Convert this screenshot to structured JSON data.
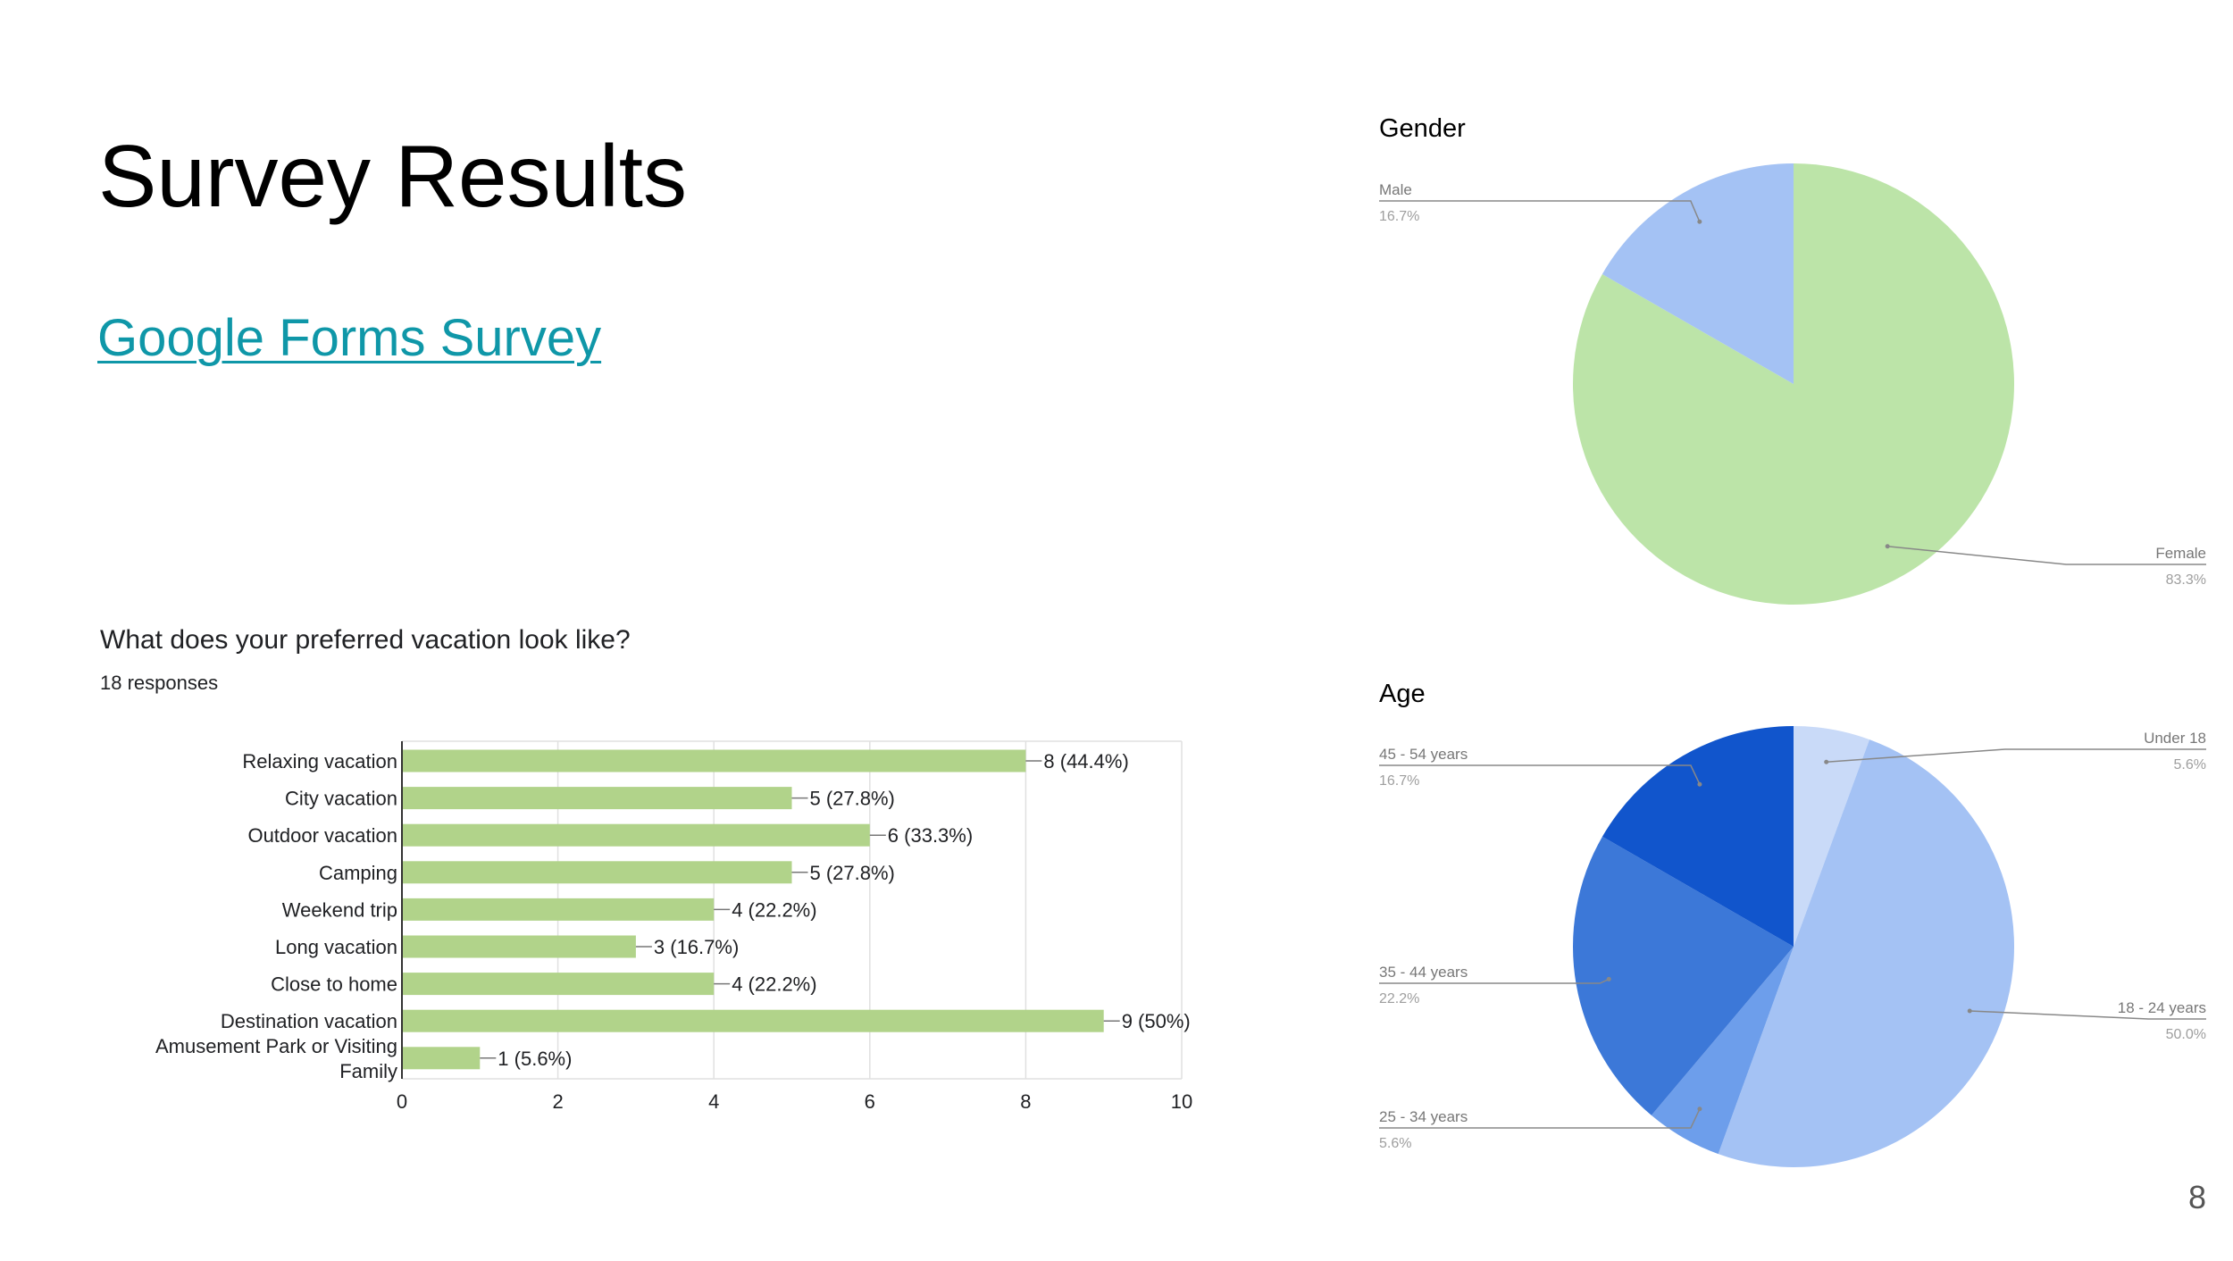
{
  "slide": {
    "title": "Survey Results",
    "link_text": "Google Forms Survey",
    "link_color": "#0f97a8",
    "page_number": "8"
  },
  "chart_data": [
    {
      "type": "bar",
      "orientation": "horizontal",
      "title": "What does your preferred vacation look like?",
      "subtitle": "18 responses",
      "categories": [
        "Relaxing vacation",
        "City vacation",
        "Outdoor vacation",
        "Camping",
        "Weekend trip",
        "Long vacation",
        "Close to home",
        "Destination vacation",
        "Amusement Park or Visiting Family"
      ],
      "values": [
        8,
        5,
        6,
        5,
        4,
        3,
        4,
        9,
        1
      ],
      "value_labels": [
        "8 (44.4%)",
        "5 (27.8%)",
        "6 (33.3%)",
        "5 (27.8%)",
        "4 (22.2%)",
        "3 (16.7%)",
        "4 (22.2%)",
        "9 (50%)",
        "1 (5.6%)"
      ],
      "xlim": [
        0,
        10
      ],
      "xticks": [
        0,
        2,
        4,
        6,
        8,
        10
      ],
      "grid": true,
      "bar_color": "#b1d38a"
    },
    {
      "type": "pie",
      "title": "Gender",
      "slices": [
        {
          "label": "Female",
          "value": 83.3,
          "pct": "83.3%",
          "color": "#bce4a8"
        },
        {
          "label": "Male",
          "value": 16.7,
          "pct": "16.7%",
          "color": "#a4c2f4"
        }
      ]
    },
    {
      "type": "pie",
      "title": "Age",
      "slices": [
        {
          "label": "Under 18",
          "value": 5.6,
          "pct": "5.6%",
          "color": "#c9daf8"
        },
        {
          "label": "18 - 24 years",
          "value": 50.0,
          "pct": "50.0%",
          "color": "#a4c2f4"
        },
        {
          "label": "25 - 34 years",
          "value": 5.6,
          "pct": "5.6%",
          "color": "#6d9eeb"
        },
        {
          "label": "35 - 44 years",
          "value": 22.2,
          "pct": "22.2%",
          "color": "#3c78d8"
        },
        {
          "label": "45 - 54 years",
          "value": 16.7,
          "pct": "16.7%",
          "color": "#1155cc"
        }
      ]
    }
  ]
}
